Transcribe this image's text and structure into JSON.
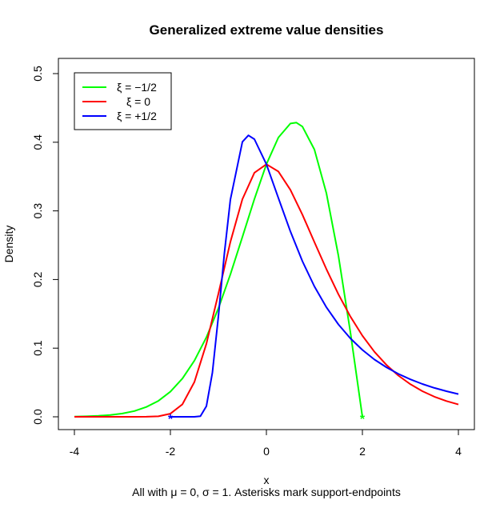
{
  "chart_data": {
    "type": "line",
    "title": "Generalized extreme value densities",
    "xlabel": "x",
    "ylabel": "Density",
    "subtitle": "All with μ = 0, σ = 1. Asterisks mark support-endpoints",
    "xlim": [
      -4,
      4
    ],
    "ylim": [
      0,
      0.5
    ],
    "xticks": [
      -4,
      -2,
      0,
      2,
      4
    ],
    "yticks": [
      0.0,
      0.1,
      0.2,
      0.3,
      0.4,
      0.5
    ],
    "ytick_labels": [
      "0.0",
      "0.1",
      "0.2",
      "0.3",
      "0.4",
      "0.5"
    ],
    "grid": false,
    "legend_position": "top-left",
    "series": [
      {
        "name": "ξ = −1/2",
        "color": "#00ff00",
        "points": [
          [
            -4,
            0.0004
          ],
          [
            -3.75,
            0.0007
          ],
          [
            -3.5,
            0.0014
          ],
          [
            -3.25,
            0.0027
          ],
          [
            -3,
            0.0048
          ],
          [
            -2.75,
            0.0084
          ],
          [
            -2.5,
            0.0143
          ],
          [
            -2.25,
            0.0232
          ],
          [
            -2,
            0.0366
          ],
          [
            -1.75,
            0.0557
          ],
          [
            -1.5,
            0.0818
          ],
          [
            -1.25,
            0.1159
          ],
          [
            -1,
            0.1581
          ],
          [
            -0.75,
            0.2076
          ],
          [
            -0.5,
            0.262
          ],
          [
            -0.25,
            0.3173
          ],
          [
            0,
            0.3679
          ],
          [
            0.25,
            0.4069
          ],
          [
            0.5,
            0.4273
          ],
          [
            0.625,
            0.4286
          ],
          [
            0.75,
            0.4229
          ],
          [
            1,
            0.3894
          ],
          [
            1.25,
            0.3258
          ],
          [
            1.5,
            0.2348
          ],
          [
            1.75,
            0.1231
          ],
          [
            2,
            0
          ]
        ],
        "endpoint": [
          2,
          0
        ]
      },
      {
        "name": "ξ = 0",
        "color": "#ff0000",
        "points": [
          [
            -4,
            0
          ],
          [
            -3.5,
            0
          ],
          [
            -3,
            0
          ],
          [
            -2.75,
            0
          ],
          [
            -2.5,
            0.0001
          ],
          [
            -2.25,
            0.0007
          ],
          [
            -2,
            0.0046
          ],
          [
            -1.75,
            0.0182
          ],
          [
            -1.5,
            0.0507
          ],
          [
            -1.25,
            0.1064
          ],
          [
            -1,
            0.1794
          ],
          [
            -0.75,
            0.2549
          ],
          [
            -0.5,
            0.317
          ],
          [
            -0.25,
            0.3556
          ],
          [
            0,
            0.3679
          ],
          [
            0.25,
            0.3574
          ],
          [
            0.5,
            0.3307
          ],
          [
            0.75,
            0.2945
          ],
          [
            1,
            0.2546
          ],
          [
            1.25,
            0.2151
          ],
          [
            1.5,
            0.1785
          ],
          [
            1.75,
            0.146
          ],
          [
            2,
            0.1182
          ],
          [
            2.25,
            0.0948
          ],
          [
            2.5,
            0.0756
          ],
          [
            2.75,
            0.06
          ],
          [
            3,
            0.0474
          ],
          [
            3.25,
            0.0373
          ],
          [
            3.5,
            0.0293
          ],
          [
            3.75,
            0.023
          ],
          [
            4,
            0.018
          ]
        ]
      },
      {
        "name": "ξ = +1/2",
        "color": "#0000ff",
        "points": [
          [
            -2,
            0
          ],
          [
            -1.75,
            0
          ],
          [
            -1.5,
            0
          ],
          [
            -1.375,
            0.0008
          ],
          [
            -1.25,
            0.0155
          ],
          [
            -1.125,
            0.0643
          ],
          [
            -1,
            0.1465
          ],
          [
            -0.875,
            0.2383
          ],
          [
            -0.75,
            0.3166
          ],
          [
            -0.5,
            0.4006
          ],
          [
            -0.375,
            0.41
          ],
          [
            -0.25,
            0.4044
          ],
          [
            0,
            0.3679
          ],
          [
            0.25,
            0.3187
          ],
          [
            0.5,
            0.27
          ],
          [
            0.75,
            0.2267
          ],
          [
            1,
            0.19
          ],
          [
            1.25,
            0.1596
          ],
          [
            1.5,
            0.1346
          ],
          [
            1.75,
            0.1142
          ],
          [
            2,
            0.0974
          ],
          [
            2.25,
            0.0835
          ],
          [
            2.5,
            0.0721
          ],
          [
            2.75,
            0.0625
          ],
          [
            3,
            0.0545
          ],
          [
            3.25,
            0.0478
          ],
          [
            3.5,
            0.0421
          ],
          [
            3.75,
            0.0373
          ],
          [
            4,
            0.0331
          ]
        ],
        "endpoint": [
          -2,
          0
        ]
      }
    ]
  }
}
